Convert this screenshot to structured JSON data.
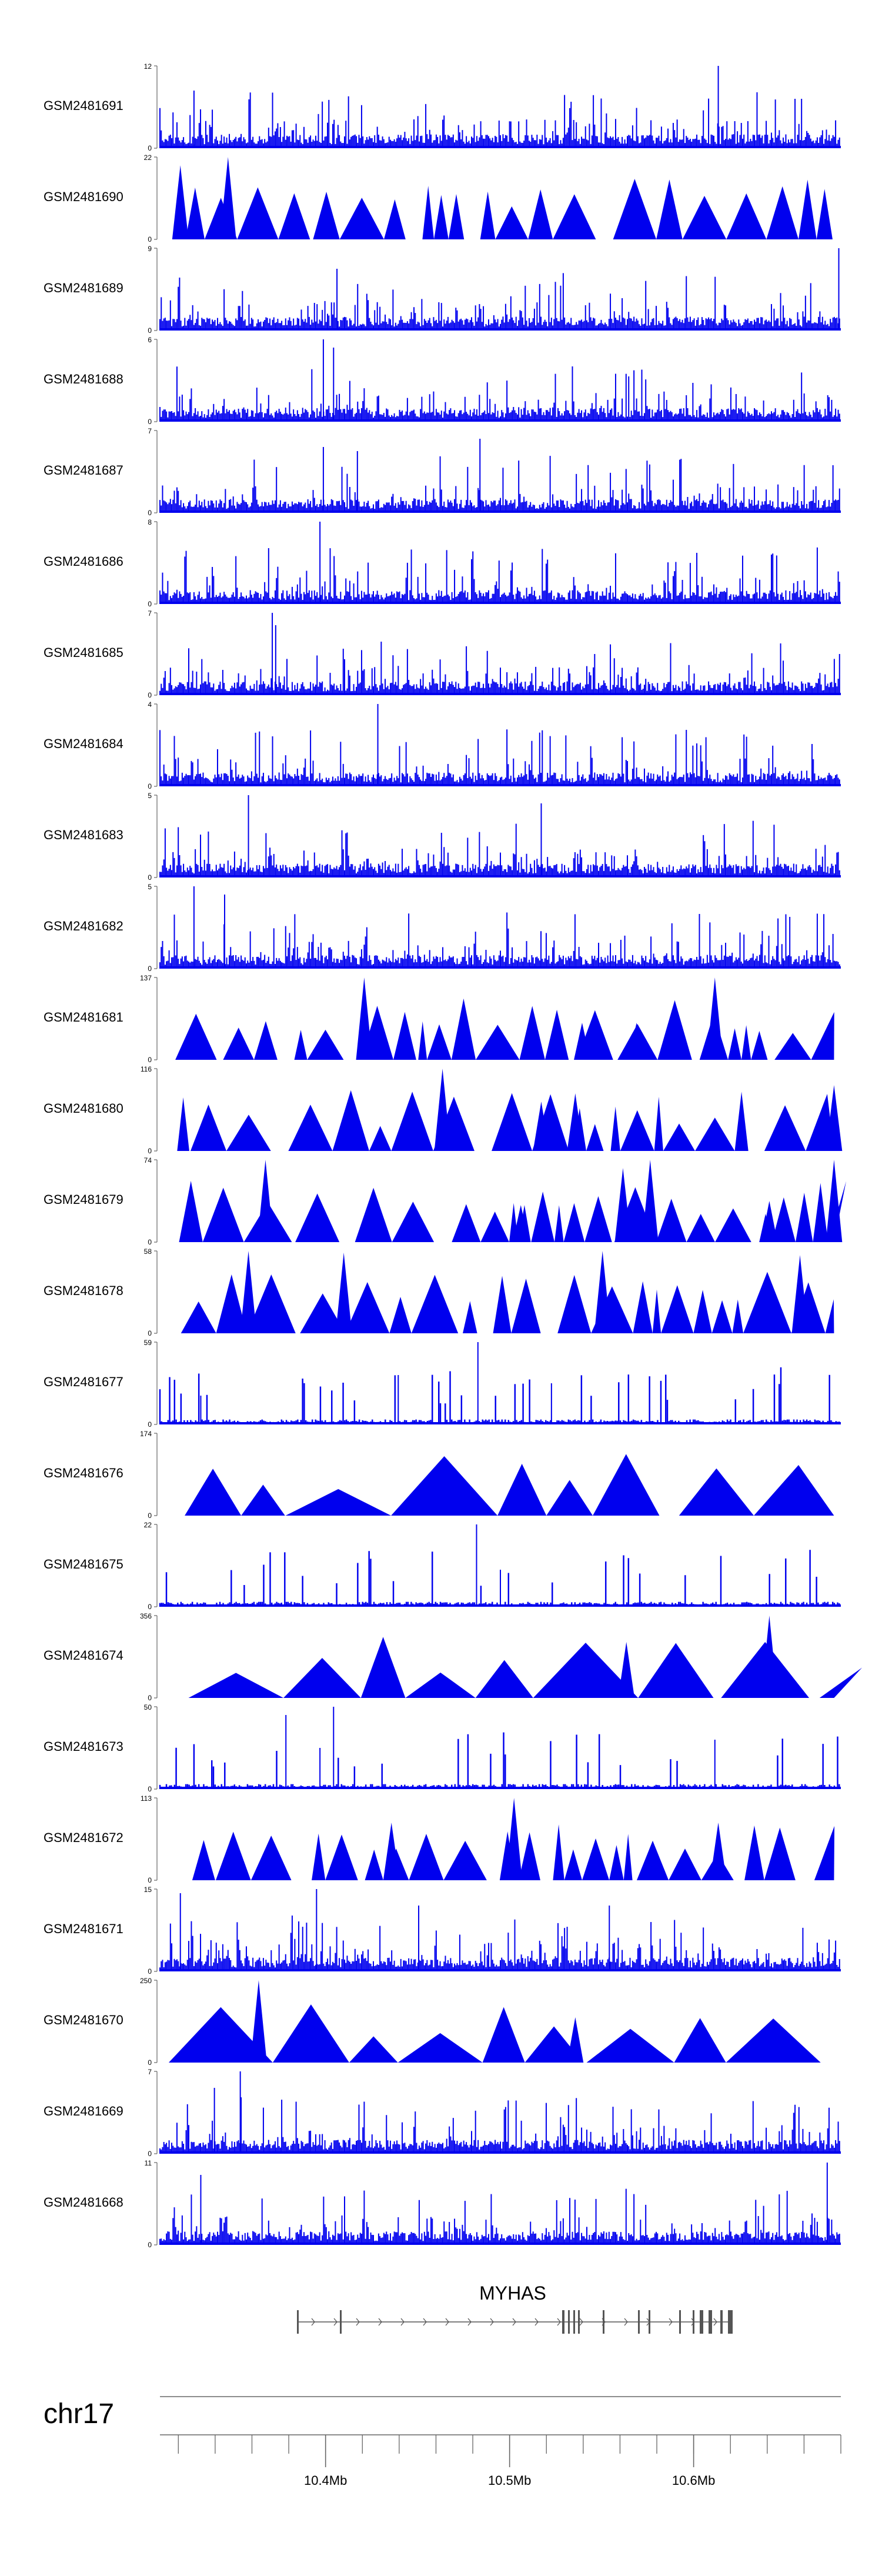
{
  "colors": {
    "signal": "#0000ee",
    "axis": "#666666",
    "gene": "#555555",
    "text": "#000000"
  },
  "chart_data": {
    "type": "genome-track-plot",
    "chromosome": "chr17",
    "gene": "MYHAS",
    "axis": {
      "range_mb": [
        10.31,
        10.68
      ],
      "labeled_ticks": [
        {
          "value": 10.4,
          "label": "10.4Mb"
        },
        {
          "value": 10.5,
          "label": "10.5Mb"
        },
        {
          "value": 10.6,
          "label": "10.6Mb"
        }
      ],
      "minor_tick_step_mb": 0.02
    },
    "tracks": [
      {
        "name": "GSM2481691",
        "ymax": "12",
        "style": "dense",
        "peaks": [
          [
            0.82,
            1.0
          ],
          [
            0.05,
            0.7
          ]
        ]
      },
      {
        "name": "GSM2481690",
        "ymax": "22",
        "style": "triangles",
        "peaks": [
          [
            0.1,
            1.0
          ],
          [
            0.03,
            0.9
          ]
        ]
      },
      {
        "name": "GSM2481689",
        "ymax": "9",
        "style": "dense",
        "peaks": [
          [
            0.997,
            1.0
          ],
          [
            0.26,
            0.75
          ]
        ]
      },
      {
        "name": "GSM2481688",
        "ymax": "6",
        "style": "dense",
        "peaks": [
          [
            0.24,
            1.0
          ],
          [
            0.255,
            0.9
          ]
        ]
      },
      {
        "name": "GSM2481687",
        "ymax": "7",
        "style": "dense",
        "peaks": [
          [
            0.24,
            0.8
          ],
          [
            0.47,
            0.9
          ],
          [
            0.29,
            0.75
          ]
        ]
      },
      {
        "name": "GSM2481686",
        "ymax": "8",
        "style": "dense",
        "peaks": [
          [
            0.235,
            1.0
          ],
          [
            0.25,
            0.6
          ]
        ]
      },
      {
        "name": "GSM2481685",
        "ymax": "7",
        "style": "dense",
        "peaks": [
          [
            0.165,
            1.0
          ],
          [
            0.17,
            0.85
          ]
        ]
      },
      {
        "name": "GSM2481684",
        "ymax": "4",
        "style": "dense",
        "peaks": [
          [
            0.32,
            1.0
          ]
        ]
      },
      {
        "name": "GSM2481683",
        "ymax": "5",
        "style": "dense",
        "peaks": [
          [
            0.13,
            1.0
          ],
          [
            0.56,
            0.9
          ]
        ]
      },
      {
        "name": "GSM2481682",
        "ymax": "5",
        "style": "dense",
        "peaks": [
          [
            0.05,
            1.0
          ],
          [
            0.095,
            0.9
          ]
        ]
      },
      {
        "name": "GSM2481681",
        "ymax": "137",
        "style": "triangles",
        "peaks": [
          [
            0.3,
            1.0
          ],
          [
            0.815,
            1.0
          ],
          [
            0.62,
            0.45
          ],
          [
            0.7,
            0.45
          ]
        ]
      },
      {
        "name": "GSM2481680",
        "ymax": "116",
        "style": "triangles",
        "peaks": [
          [
            0.415,
            1.0
          ],
          [
            0.99,
            0.8
          ],
          [
            0.61,
            0.7
          ],
          [
            0.56,
            0.6
          ]
        ]
      },
      {
        "name": "GSM2481679",
        "ymax": "74",
        "style": "triangles",
        "peaks": [
          [
            0.155,
            1.0
          ],
          [
            0.72,
            1.0
          ],
          [
            0.99,
            1.0
          ],
          [
            0.68,
            0.9
          ],
          [
            0.53,
            0.45
          ],
          [
            0.895,
            0.5
          ]
        ]
      },
      {
        "name": "GSM2481678",
        "ymax": "58",
        "style": "triangles",
        "peaks": [
          [
            0.13,
            1.0
          ],
          [
            0.65,
            1.0
          ],
          [
            0.27,
            0.98
          ],
          [
            0.94,
            0.95
          ]
        ]
      },
      {
        "name": "GSM2481677",
        "ymax": "59",
        "style": "sparse",
        "peaks": [
          [
            0.467,
            1.0
          ],
          [
            0.35,
            0.6
          ],
          [
            0.575,
            0.5
          ],
          [
            0.06,
            0.35
          ]
        ]
      },
      {
        "name": "GSM2481676",
        "ymax": "174",
        "style": "triangles",
        "peaks": []
      },
      {
        "name": "GSM2481675",
        "ymax": "22",
        "style": "sparse",
        "peaks": [
          [
            0.465,
            1.0
          ],
          [
            0.5,
            0.45
          ]
        ]
      },
      {
        "name": "GSM2481674",
        "ymax": "356",
        "style": "triangles",
        "peaks": [
          [
            0.895,
            1.0
          ],
          [
            0.685,
            0.68
          ]
        ]
      },
      {
        "name": "GSM2481673",
        "ymax": "50",
        "style": "sparse",
        "peaks": [
          [
            0.255,
            1.0
          ],
          [
            0.185,
            0.9
          ],
          [
            0.815,
            0.6
          ],
          [
            0.235,
            0.5
          ]
        ]
      },
      {
        "name": "GSM2481672",
        "ymax": "113",
        "style": "triangles",
        "peaks": [
          [
            0.52,
            1.0
          ],
          [
            0.34,
            0.7
          ],
          [
            0.82,
            0.7
          ]
        ]
      },
      {
        "name": "GSM2481671",
        "ymax": "15",
        "style": "dense",
        "peaks": [
          [
            0.23,
            1.0
          ],
          [
            0.03,
            0.95
          ],
          [
            0.66,
            0.8
          ],
          [
            0.38,
            0.8
          ]
        ]
      },
      {
        "name": "GSM2481670",
        "ymax": "250",
        "style": "triangles",
        "peaks": [
          [
            0.145,
            1.0
          ],
          [
            0.61,
            0.55
          ]
        ]
      },
      {
        "name": "GSM2481669",
        "ymax": "7",
        "style": "dense",
        "peaks": [
          [
            0.118,
            1.0
          ],
          [
            0.08,
            0.8
          ]
        ]
      },
      {
        "name": "GSM2481668",
        "ymax": "11",
        "style": "dense",
        "peaks": [
          [
            0.98,
            1.0
          ],
          [
            0.06,
            0.85
          ]
        ]
      }
    ]
  }
}
